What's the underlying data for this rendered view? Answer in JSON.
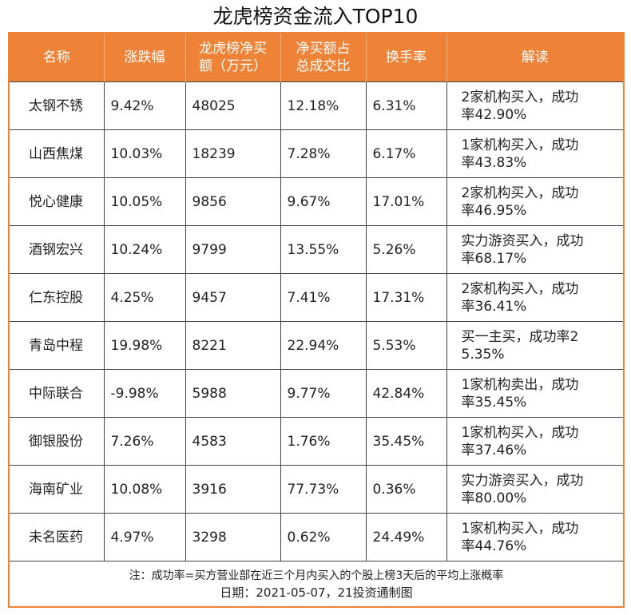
{
  "title": "龙虎榜资金流入TOP10",
  "headers": {
    "name": "名称",
    "change": "涨跌幅",
    "net_buy_l1": "龙虎榜净买",
    "net_buy_l2": "额（万元）",
    "ratio_l1": "净买额占",
    "ratio_l2": "总成交比",
    "turnover": "换手率",
    "comment": "解读"
  },
  "rows": [
    {
      "name": "太钢不锈",
      "change": "9.42%",
      "net_buy": "48025",
      "ratio": "12.18%",
      "turnover": "6.31%",
      "comment_l1": "2家机构买入，成功",
      "comment_l2": "率42.90%"
    },
    {
      "name": "山西焦煤",
      "change": "10.03%",
      "net_buy": "18239",
      "ratio": "7.28%",
      "turnover": "6.17%",
      "comment_l1": "1家机构买入，成功",
      "comment_l2": "率43.83%"
    },
    {
      "name": "悦心健康",
      "change": "10.05%",
      "net_buy": "9856",
      "ratio": "9.67%",
      "turnover": "17.01%",
      "comment_l1": "2家机构买入，成功",
      "comment_l2": "率46.95%"
    },
    {
      "name": "酒钢宏兴",
      "change": "10.24%",
      "net_buy": "9799",
      "ratio": "13.55%",
      "turnover": "5.26%",
      "comment_l1": "实力游资买入，成功",
      "comment_l2": "率68.17%"
    },
    {
      "name": "仁东控股",
      "change": "4.25%",
      "net_buy": "9457",
      "ratio": "7.41%",
      "turnover": "17.31%",
      "comment_l1": "2家机构买入，成功",
      "comment_l2": "率36.41%"
    },
    {
      "name": "青岛中程",
      "change": "19.98%",
      "net_buy": "8221",
      "ratio": "22.94%",
      "turnover": "5.53%",
      "comment_l1": "买一主买，成功率2",
      "comment_l2": "5.35%"
    },
    {
      "name": "中际联合",
      "change": "-9.98%",
      "net_buy": "5988",
      "ratio": "9.77%",
      "turnover": "42.84%",
      "comment_l1": "1家机构卖出，成功",
      "comment_l2": "率35.45%"
    },
    {
      "name": "御银股份",
      "change": "7.26%",
      "net_buy": "4583",
      "ratio": "1.76%",
      "turnover": "35.45%",
      "comment_l1": "1家机构买入，成功",
      "comment_l2": "率37.46%"
    },
    {
      "name": "海南矿业",
      "change": "10.08%",
      "net_buy": "3916",
      "ratio": "77.73%",
      "turnover": "0.36%",
      "comment_l1": "实力游资买入，成功",
      "comment_l2": "率80.00%"
    },
    {
      "name": "未名医药",
      "change": "4.97%",
      "net_buy": "3298",
      "ratio": "0.62%",
      "turnover": "24.49%",
      "comment_l1": "1家机构买入，成功",
      "comment_l2": "率44.76%"
    }
  ],
  "footer": {
    "note": "注：成功率=买方营业部在近三个月内买入的个股上榜3天后的平均上涨概率",
    "date": "日期：2021-05-07，21投资通制图"
  },
  "colors": {
    "accent": "#ee8338"
  }
}
